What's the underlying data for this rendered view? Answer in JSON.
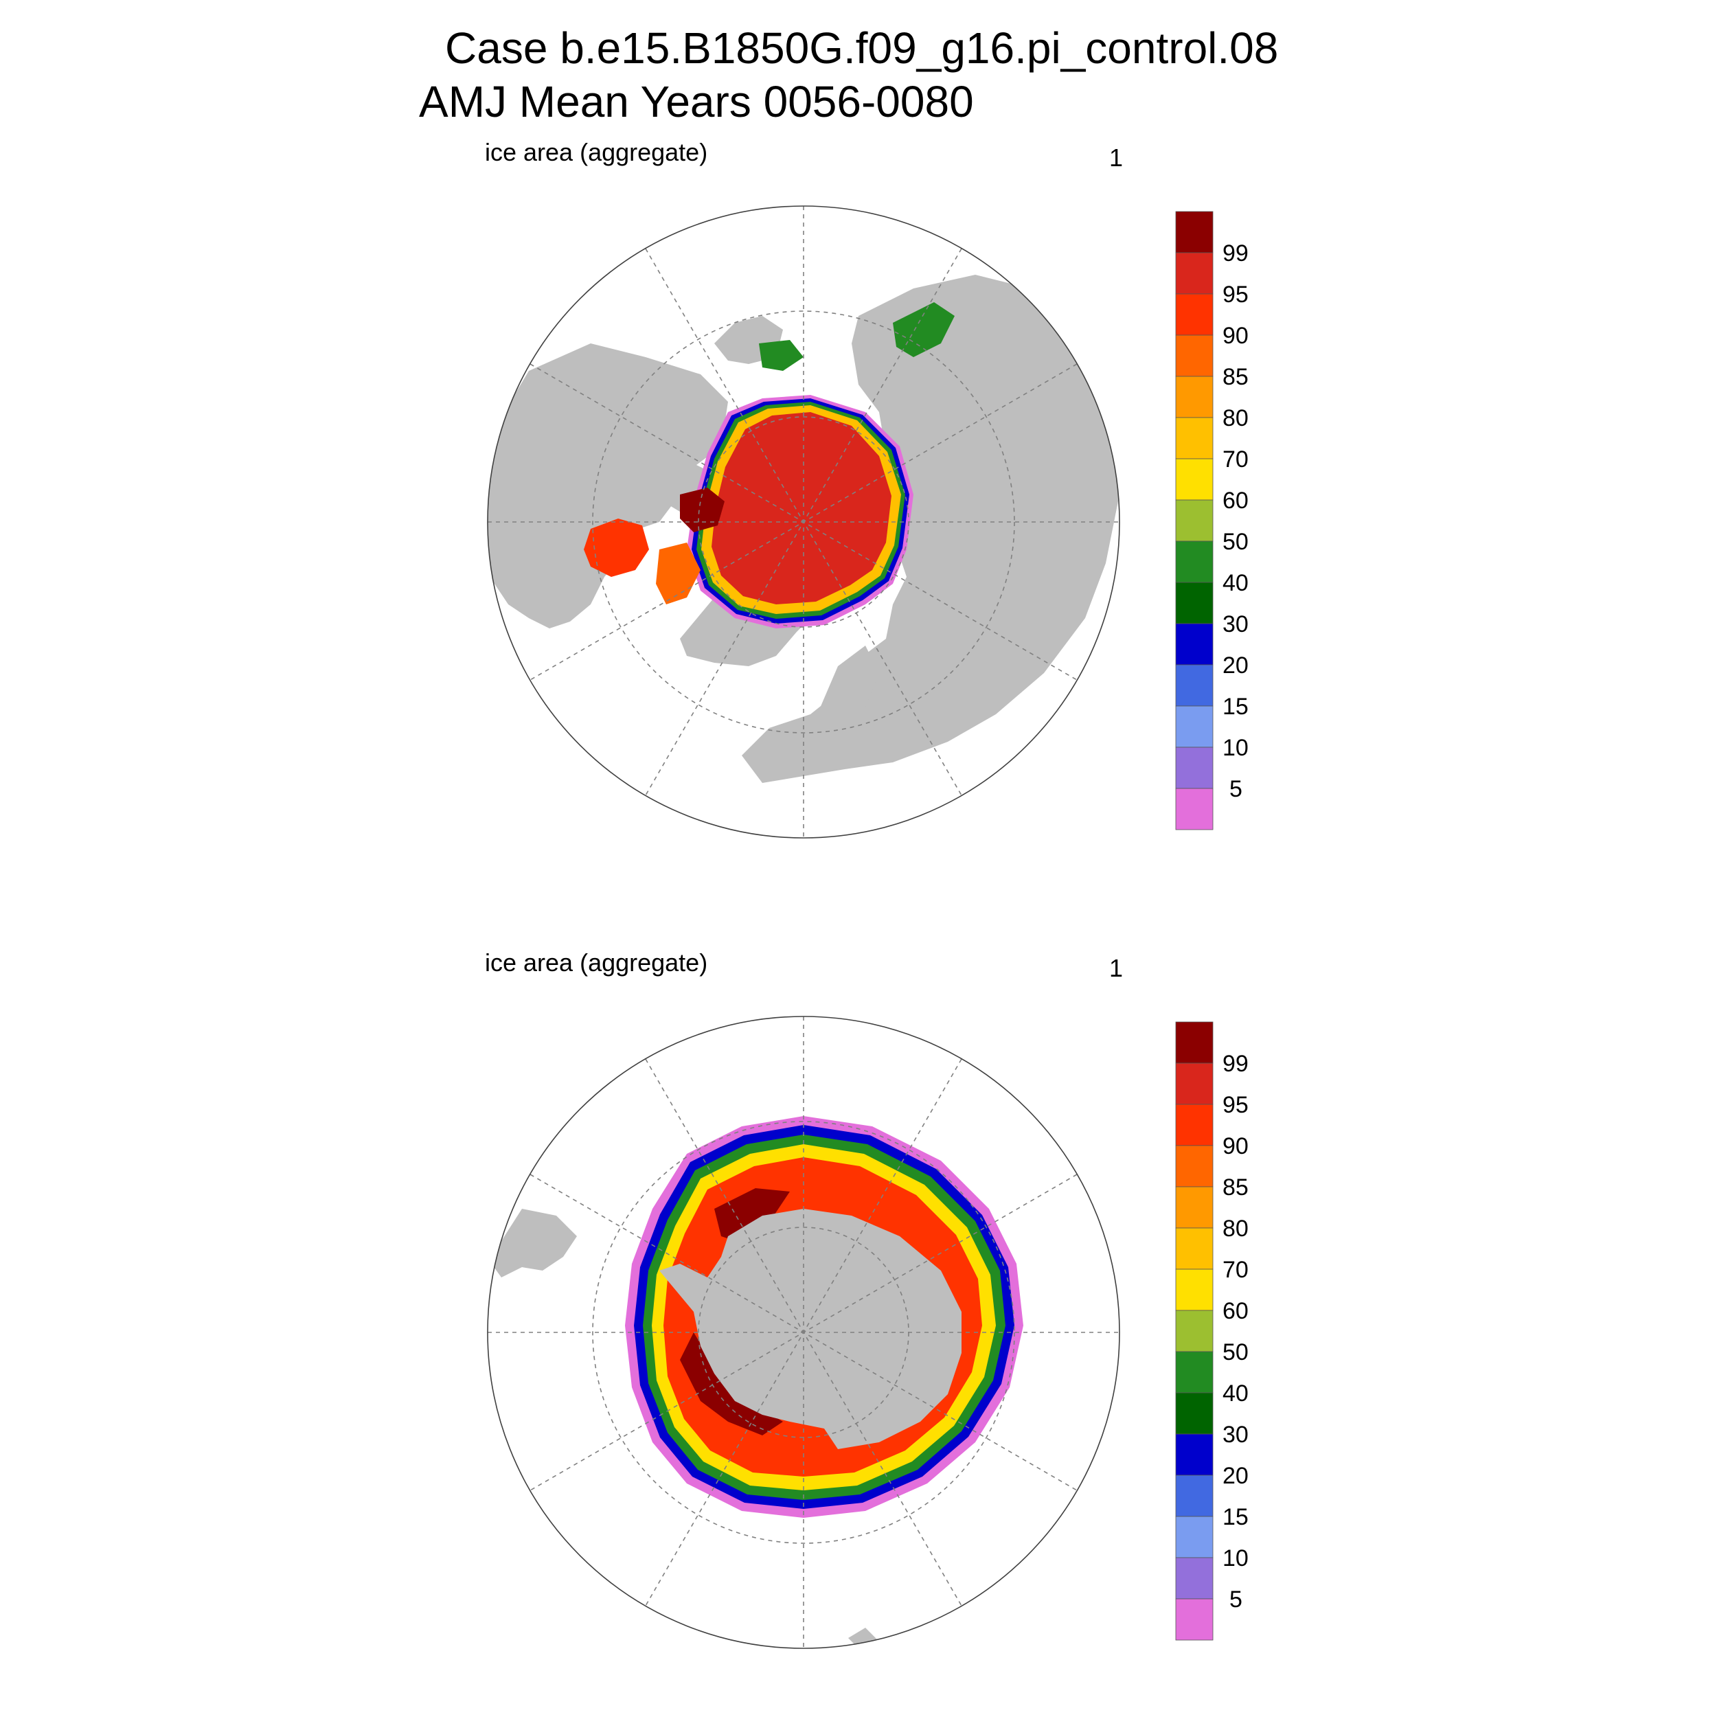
{
  "title": {
    "line1": "Case b.e15.B1850G.f09_g16.pi_control.08",
    "line2": "AMJ Mean   Years 0056-0080"
  },
  "panels": [
    {
      "id": "nh",
      "left_label": "ice area  (aggregate)",
      "right_label": "1"
    },
    {
      "id": "sh",
      "left_label": "ice area  (aggregate)",
      "right_label": "1"
    }
  ],
  "colorbar": {
    "labels": [
      "99",
      "95",
      "90",
      "85",
      "80",
      "70",
      "60",
      "50",
      "40",
      "30",
      "20",
      "15",
      "10",
      "5"
    ],
    "colors": [
      "#8b0000",
      "#d9261c",
      "#ff3300",
      "#ff6600",
      "#ff9900",
      "#ffc000",
      "#ffe000",
      "#9cbf30",
      "#228b22",
      "#006400",
      "#0000cc",
      "#4169e1",
      "#7a9cf0",
      "#9370db",
      "#e36fdb"
    ]
  },
  "colors": {
    "land": "#bebebe",
    "ocean": "#ffffff",
    "grid": "#808080"
  }
}
